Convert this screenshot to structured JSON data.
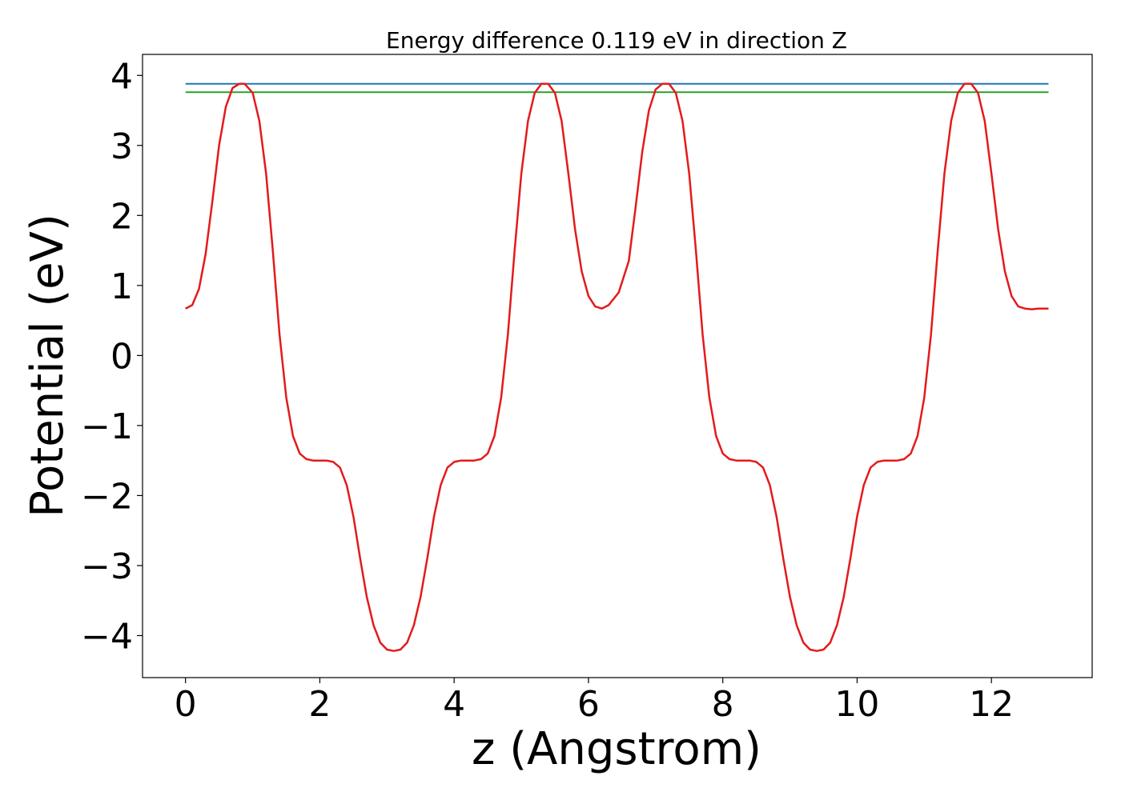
{
  "chart_data": {
    "type": "line",
    "title": "Energy difference 0.119 eV in direction Z",
    "xlabel": "z (Angstrom)",
    "ylabel": "Potential (eV)",
    "xlim": [
      -0.64,
      13.5
    ],
    "ylim": [
      -4.6,
      4.3
    ],
    "xticks": [
      0,
      2,
      4,
      6,
      8,
      10,
      12
    ],
    "xtick_labels": [
      "0",
      "2",
      "4",
      "6",
      "8",
      "10",
      "12"
    ],
    "yticks": [
      4,
      3,
      2,
      1,
      0,
      -1,
      -2,
      -3,
      -4
    ],
    "ytick_labels": [
      "4",
      "3",
      "2",
      "1",
      "0",
      "−1",
      "−2",
      "−3",
      "−4"
    ],
    "grid": false,
    "legend": "none",
    "series": [
      {
        "color": "#1f77b4",
        "x": [
          0,
          12.85
        ],
        "values": [
          3.88,
          3.88
        ]
      },
      {
        "color": "#2ca02c",
        "x": [
          0,
          12.85
        ],
        "values": [
          3.76,
          3.76
        ]
      },
      {
        "color": "#e31a1c",
        "x": [
          0,
          0.1,
          0.2,
          0.3,
          0.4,
          0.5,
          0.6,
          0.7,
          0.8,
          0.88,
          1.0,
          1.1,
          1.2,
          1.3,
          1.4,
          1.5,
          1.6,
          1.7,
          1.8,
          1.9,
          2.0,
          2.1,
          2.2,
          2.3,
          2.4,
          2.5,
          2.6,
          2.7,
          2.8,
          2.9,
          3.0,
          3.1,
          3.2,
          3.3,
          3.4,
          3.5,
          3.6,
          3.7,
          3.8,
          3.9,
          4.0,
          4.1,
          4.2,
          4.3,
          4.4,
          4.5,
          4.6,
          4.7,
          4.8,
          4.9,
          5.0,
          5.1,
          5.2,
          5.3,
          5.4,
          5.5,
          5.6,
          5.7,
          5.8,
          5.9,
          6.0,
          6.1,
          6.2,
          6.3,
          6.45,
          6.6,
          6.7,
          6.8,
          6.9,
          7.0,
          7.1,
          7.2,
          7.3,
          7.4,
          7.5,
          7.6,
          7.7,
          7.8,
          7.9,
          8.0,
          8.1,
          8.2,
          8.3,
          8.4,
          8.5,
          8.6,
          8.7,
          8.8,
          8.9,
          9.0,
          9.1,
          9.2,
          9.3,
          9.4,
          9.5,
          9.6,
          9.7,
          9.8,
          9.9,
          10.0,
          10.1,
          10.2,
          10.3,
          10.4,
          10.5,
          10.6,
          10.7,
          10.8,
          10.9,
          11.0,
          11.1,
          11.2,
          11.3,
          11.4,
          11.5,
          11.6,
          11.7,
          11.8,
          11.9,
          12.0,
          12.1,
          12.2,
          12.3,
          12.4,
          12.5,
          12.6,
          12.7,
          12.85
        ],
        "values": [
          0.67,
          0.72,
          0.95,
          1.45,
          2.2,
          3.0,
          3.55,
          3.82,
          3.88,
          3.88,
          3.75,
          3.35,
          2.6,
          1.5,
          0.3,
          -0.6,
          -1.15,
          -1.4,
          -1.48,
          -1.5,
          -1.5,
          -1.5,
          -1.52,
          -1.6,
          -1.85,
          -2.3,
          -2.9,
          -3.45,
          -3.85,
          -4.1,
          -4.2,
          -4.22,
          -4.2,
          -4.1,
          -3.85,
          -3.45,
          -2.9,
          -2.3,
          -1.85,
          -1.6,
          -1.52,
          -1.5,
          -1.5,
          -1.5,
          -1.48,
          -1.4,
          -1.15,
          -0.6,
          0.3,
          1.5,
          2.6,
          3.35,
          3.75,
          3.88,
          3.88,
          3.75,
          3.35,
          2.6,
          1.8,
          1.2,
          0.85,
          0.7,
          0.67,
          0.72,
          0.9,
          1.35,
          2.1,
          2.9,
          3.5,
          3.8,
          3.88,
          3.88,
          3.75,
          3.35,
          2.6,
          1.5,
          0.3,
          -0.6,
          -1.15,
          -1.4,
          -1.48,
          -1.5,
          -1.5,
          -1.5,
          -1.52,
          -1.6,
          -1.85,
          -2.3,
          -2.9,
          -3.45,
          -3.85,
          -4.1,
          -4.2,
          -4.22,
          -4.2,
          -4.1,
          -3.85,
          -3.45,
          -2.9,
          -2.3,
          -1.85,
          -1.6,
          -1.52,
          -1.5,
          -1.5,
          -1.5,
          -1.48,
          -1.4,
          -1.15,
          -0.6,
          0.3,
          1.5,
          2.6,
          3.35,
          3.75,
          3.88,
          3.88,
          3.75,
          3.35,
          2.6,
          1.8,
          1.2,
          0.85,
          0.7,
          0.67,
          0.66,
          0.67,
          0.67
        ]
      }
    ]
  }
}
